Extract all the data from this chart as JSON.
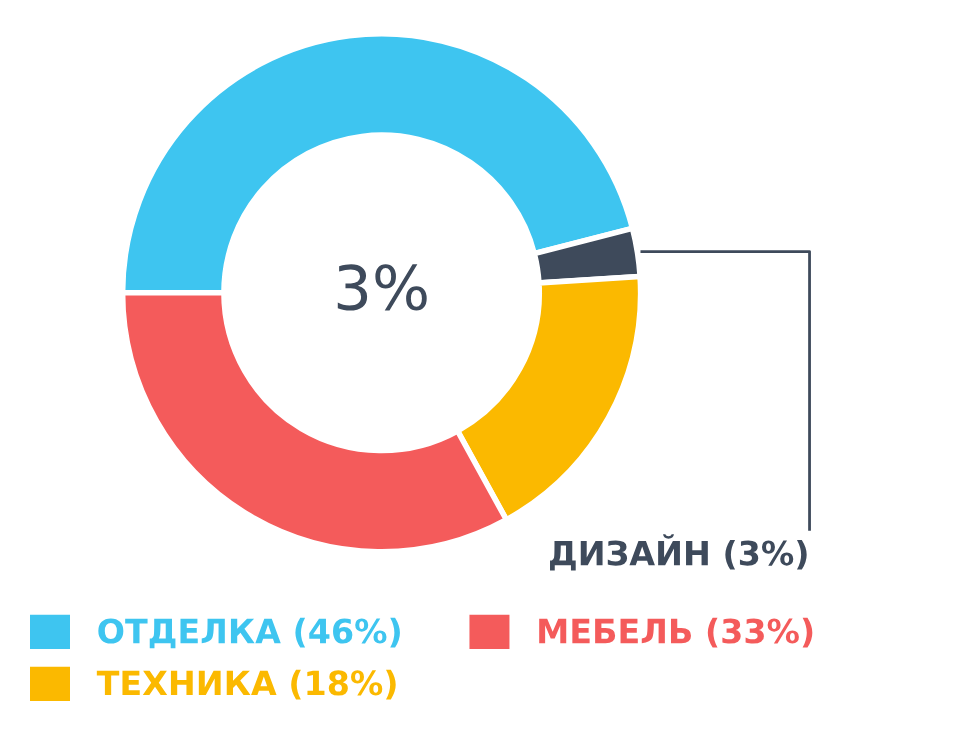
{
  "chart_data": {
    "type": "donut",
    "categories": [
      "ОТДЕЛКА (46%)",
      "ДИЗАЙН (3%)",
      "ТЕХНИКА (18%)",
      "МЕБЕЛЬ (33%)"
    ],
    "values": [
      46,
      3,
      18,
      33
    ],
    "colors": [
      "#3ec5f0",
      "#3e4a5b",
      "#fbb900",
      "#f45b5b"
    ],
    "annotations": [
      "3%"
    ],
    "legend": "bottom"
  }
}
